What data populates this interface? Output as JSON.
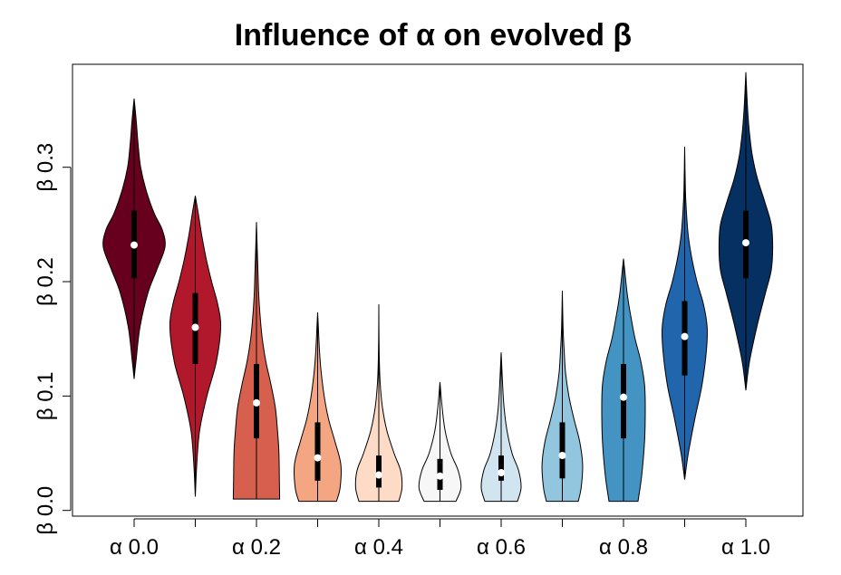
{
  "chart_data": {
    "type": "violin",
    "title": "Influence of α on evolved β",
    "xlabel": "",
    "ylabel": "",
    "x_tick_labels": [
      "α 0.0",
      "α 0.2",
      "α 0.4",
      "α 0.6",
      "α 0.8",
      "α 1.0"
    ],
    "y_tick_labels": [
      "β 0.0",
      "β 0.1",
      "β 0.2",
      "β 0.3"
    ],
    "y_ticks": [
      0.0,
      0.1,
      0.2,
      0.3
    ],
    "ylim": [
      -0.005,
      0.39
    ],
    "series": [
      {
        "alpha": 0.0,
        "color": "#67001f",
        "min": 0.115,
        "max": 0.36,
        "q1": 0.203,
        "median": 0.232,
        "q3": 0.262,
        "density": [
          [
            0.115,
            0.0
          ],
          [
            0.13,
            0.05
          ],
          [
            0.16,
            0.16
          ],
          [
            0.19,
            0.38
          ],
          [
            0.21,
            0.62
          ],
          [
            0.23,
            0.85
          ],
          [
            0.245,
            0.78
          ],
          [
            0.26,
            0.55
          ],
          [
            0.28,
            0.33
          ],
          [
            0.3,
            0.18
          ],
          [
            0.32,
            0.11
          ],
          [
            0.34,
            0.06
          ],
          [
            0.36,
            0.0
          ]
        ]
      },
      {
        "alpha": 0.1,
        "color": "#b2182b",
        "min": 0.012,
        "max": 0.275,
        "q1": 0.128,
        "median": 0.16,
        "q3": 0.19,
        "density": [
          [
            0.012,
            0.0
          ],
          [
            0.04,
            0.04
          ],
          [
            0.07,
            0.12
          ],
          [
            0.1,
            0.32
          ],
          [
            0.13,
            0.58
          ],
          [
            0.16,
            0.7
          ],
          [
            0.18,
            0.62
          ],
          [
            0.2,
            0.45
          ],
          [
            0.22,
            0.3
          ],
          [
            0.24,
            0.18
          ],
          [
            0.26,
            0.08
          ],
          [
            0.275,
            0.0
          ]
        ]
      },
      {
        "alpha": 0.2,
        "color": "#d6604d",
        "min": 0.01,
        "max": 0.252,
        "q1": 0.063,
        "median": 0.094,
        "q3": 0.128,
        "density": [
          [
            0.01,
            0.64
          ],
          [
            0.03,
            0.63
          ],
          [
            0.05,
            0.62
          ],
          [
            0.07,
            0.58
          ],
          [
            0.09,
            0.52
          ],
          [
            0.11,
            0.4
          ],
          [
            0.13,
            0.26
          ],
          [
            0.15,
            0.16
          ],
          [
            0.17,
            0.1
          ],
          [
            0.19,
            0.06
          ],
          [
            0.21,
            0.04
          ],
          [
            0.23,
            0.02
          ],
          [
            0.252,
            0.0
          ]
        ]
      },
      {
        "alpha": 0.3,
        "color": "#f4a582",
        "min": 0.008,
        "max": 0.173,
        "q1": 0.026,
        "median": 0.046,
        "q3": 0.077,
        "density": [
          [
            0.008,
            0.52
          ],
          [
            0.02,
            0.62
          ],
          [
            0.04,
            0.64
          ],
          [
            0.06,
            0.48
          ],
          [
            0.08,
            0.3
          ],
          [
            0.1,
            0.18
          ],
          [
            0.12,
            0.1
          ],
          [
            0.14,
            0.05
          ],
          [
            0.16,
            0.02
          ],
          [
            0.173,
            0.0
          ]
        ]
      },
      {
        "alpha": 0.4,
        "color": "#fddbc7",
        "min": 0.008,
        "max": 0.18,
        "q1": 0.02,
        "median": 0.031,
        "q3": 0.048,
        "density": [
          [
            0.008,
            0.55
          ],
          [
            0.02,
            0.64
          ],
          [
            0.035,
            0.6
          ],
          [
            0.05,
            0.42
          ],
          [
            0.07,
            0.22
          ],
          [
            0.09,
            0.1
          ],
          [
            0.11,
            0.04
          ],
          [
            0.13,
            0.015
          ],
          [
            0.15,
            0.005
          ],
          [
            0.18,
            0.0
          ]
        ]
      },
      {
        "alpha": 0.5,
        "color": "#f7f7f7",
        "min": 0.008,
        "max": 0.112,
        "q1": 0.018,
        "median": 0.03,
        "q3": 0.045,
        "density": [
          [
            0.008,
            0.44
          ],
          [
            0.02,
            0.58
          ],
          [
            0.035,
            0.5
          ],
          [
            0.05,
            0.3
          ],
          [
            0.07,
            0.14
          ],
          [
            0.09,
            0.06
          ],
          [
            0.112,
            0.0
          ]
        ]
      },
      {
        "alpha": 0.6,
        "color": "#d1e5f0",
        "min": 0.008,
        "max": 0.138,
        "q1": 0.026,
        "median": 0.033,
        "q3": 0.048,
        "density": [
          [
            0.008,
            0.45
          ],
          [
            0.02,
            0.55
          ],
          [
            0.035,
            0.48
          ],
          [
            0.05,
            0.3
          ],
          [
            0.07,
            0.16
          ],
          [
            0.09,
            0.08
          ],
          [
            0.11,
            0.04
          ],
          [
            0.138,
            0.0
          ]
        ]
      },
      {
        "alpha": 0.7,
        "color": "#92c5de",
        "min": 0.008,
        "max": 0.192,
        "q1": 0.028,
        "median": 0.048,
        "q3": 0.077,
        "density": [
          [
            0.008,
            0.44
          ],
          [
            0.02,
            0.52
          ],
          [
            0.04,
            0.56
          ],
          [
            0.06,
            0.48
          ],
          [
            0.08,
            0.32
          ],
          [
            0.1,
            0.18
          ],
          [
            0.12,
            0.09
          ],
          [
            0.14,
            0.05
          ],
          [
            0.16,
            0.02
          ],
          [
            0.192,
            0.0
          ]
        ]
      },
      {
        "alpha": 0.8,
        "color": "#4393c3",
        "min": 0.008,
        "max": 0.22,
        "q1": 0.063,
        "median": 0.099,
        "q3": 0.128,
        "density": [
          [
            0.008,
            0.4
          ],
          [
            0.03,
            0.5
          ],
          [
            0.06,
            0.58
          ],
          [
            0.09,
            0.6
          ],
          [
            0.11,
            0.58
          ],
          [
            0.13,
            0.48
          ],
          [
            0.15,
            0.32
          ],
          [
            0.17,
            0.2
          ],
          [
            0.19,
            0.1
          ],
          [
            0.22,
            0.0
          ]
        ]
      },
      {
        "alpha": 0.9,
        "color": "#2166ac",
        "min": 0.027,
        "max": 0.318,
        "q1": 0.118,
        "median": 0.152,
        "q3": 0.183,
        "density": [
          [
            0.027,
            0.0
          ],
          [
            0.05,
            0.1
          ],
          [
            0.08,
            0.28
          ],
          [
            0.11,
            0.48
          ],
          [
            0.14,
            0.6
          ],
          [
            0.16,
            0.62
          ],
          [
            0.18,
            0.52
          ],
          [
            0.2,
            0.34
          ],
          [
            0.22,
            0.2
          ],
          [
            0.24,
            0.1
          ],
          [
            0.26,
            0.05
          ],
          [
            0.28,
            0.02
          ],
          [
            0.318,
            0.0
          ]
        ]
      },
      {
        "alpha": 1.0,
        "color": "#053061",
        "min": 0.105,
        "max": 0.383,
        "q1": 0.203,
        "median": 0.234,
        "q3": 0.262,
        "density": [
          [
            0.105,
            0.0
          ],
          [
            0.13,
            0.1
          ],
          [
            0.16,
            0.3
          ],
          [
            0.19,
            0.54
          ],
          [
            0.21,
            0.7
          ],
          [
            0.23,
            0.74
          ],
          [
            0.25,
            0.7
          ],
          [
            0.27,
            0.52
          ],
          [
            0.29,
            0.32
          ],
          [
            0.31,
            0.18
          ],
          [
            0.33,
            0.1
          ],
          [
            0.35,
            0.05
          ],
          [
            0.383,
            0.0
          ]
        ]
      }
    ]
  }
}
